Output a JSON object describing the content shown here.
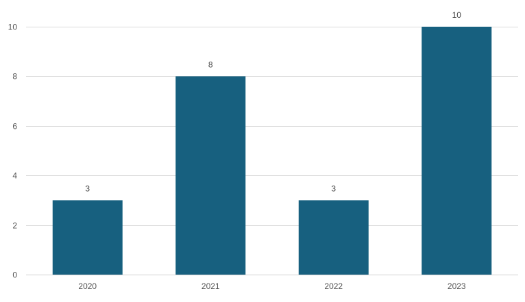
{
  "chart_data": {
    "type": "bar",
    "title": "",
    "xlabel": "",
    "ylabel": "",
    "categories": [
      "2020",
      "2021",
      "2022",
      "2023"
    ],
    "values": [
      3,
      8,
      3,
      10
    ],
    "data_labels": [
      "3",
      "8",
      "3",
      "10"
    ],
    "ylim": [
      0,
      10
    ],
    "yticks": [
      0,
      2,
      4,
      6,
      8,
      10
    ],
    "ytick_labels": [
      "0",
      "2",
      "4",
      "6",
      "8",
      "10"
    ],
    "grid": true,
    "legend": "none",
    "bar_color": "#17607f"
  }
}
